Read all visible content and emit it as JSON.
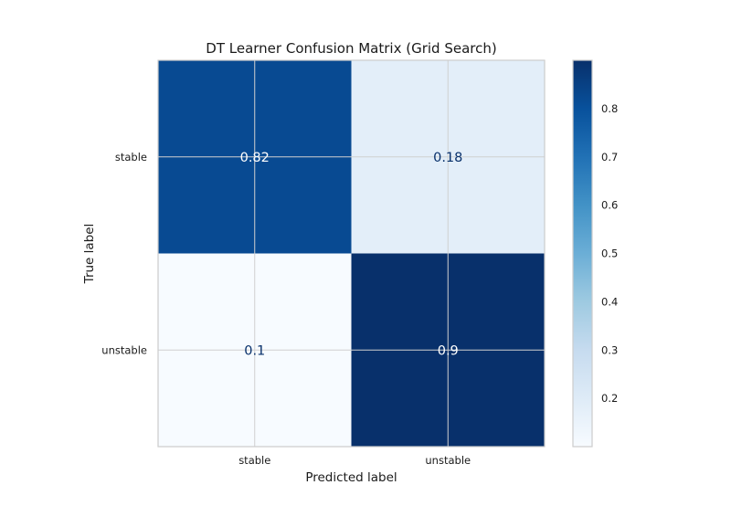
{
  "chart_data": {
    "type": "heatmap",
    "title": "DT Learner Confusion Matrix (Grid Search)",
    "xlabel": "Predicted label",
    "ylabel": "True label",
    "x_categories": [
      "stable",
      "unstable"
    ],
    "y_categories": [
      "stable",
      "unstable"
    ],
    "values": [
      [
        0.82,
        0.18
      ],
      [
        0.1,
        0.9
      ]
    ],
    "value_labels": [
      [
        "0.82",
        "0.18"
      ],
      [
        "0.1",
        "0.9"
      ]
    ],
    "colormap": "Blues",
    "colorbar": {
      "range": [
        0.1,
        0.9
      ],
      "ticks": [
        0.2,
        0.3,
        0.4,
        0.5,
        0.6,
        0.7,
        0.8
      ],
      "tick_labels": [
        "0.2",
        "0.3",
        "0.4",
        "0.5",
        "0.6",
        "0.7",
        "0.8"
      ]
    },
    "grid": true,
    "text_color_dark_cells": "#ffffff",
    "text_color_light_cells": "#08306b"
  }
}
